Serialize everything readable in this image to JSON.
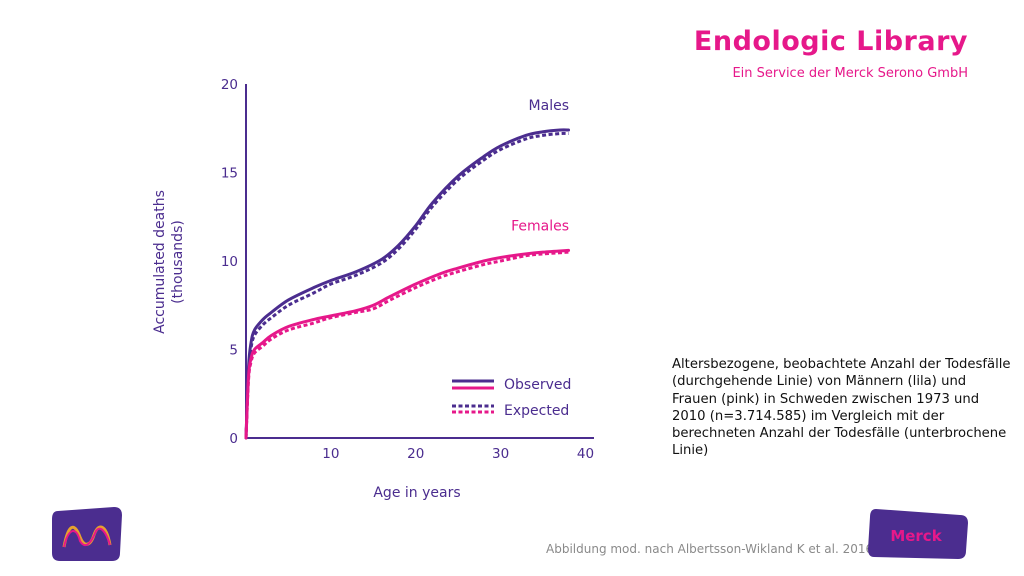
{
  "brand": {
    "title": "Endologic Library",
    "subtitle": "Ein Service der Merck Serono GmbH"
  },
  "caption": "Altersbezogene, beobachtete Anzahl der Todesfälle (durchgehende Linie) von Männern (lila) und Frauen (pink) in Schweden zwischen 1973 und 2010 (n=3.714.585) im Vergleich mit der berechneten Anzahl der Todesfälle (unterbrochene Linie)",
  "source": "Abbildung mod. nach Albertsson-Wikland K et al. 2016",
  "logos": {
    "left_icon": "merck-m-icon",
    "right_text": "Merck"
  },
  "colors": {
    "males": "#4b2d8f",
    "females": "#e6188a",
    "axis": "#4b2d8f",
    "brand": "#e6188a"
  },
  "chart_data": {
    "type": "line",
    "title": "",
    "xlabel": "Age in years",
    "ylabel": "Accumulated deaths (thousands)",
    "xlim": [
      0,
      41
    ],
    "ylim": [
      0,
      20
    ],
    "xticks": [
      10,
      20,
      30,
      40
    ],
    "yticks": [
      0,
      5,
      10,
      15,
      20
    ],
    "grid": false,
    "legend": {
      "placement": "bottom-right",
      "observed_label": "Observed",
      "expected_label": "Expected"
    },
    "series": [
      {
        "name": "Males",
        "line": "observed",
        "x": [
          0,
          0.3,
          0.6,
          1,
          2,
          3,
          5,
          8,
          10,
          13,
          16,
          18,
          20,
          22,
          25,
          28,
          30,
          33,
          35,
          37,
          38
        ],
        "y": [
          0,
          4.0,
          5.4,
          6.1,
          6.7,
          7.1,
          7.8,
          8.5,
          8.9,
          9.4,
          10.1,
          10.9,
          12.0,
          13.3,
          14.8,
          15.9,
          16.5,
          17.1,
          17.3,
          17.4,
          17.4
        ]
      },
      {
        "name": "Males",
        "line": "expected",
        "x": [
          0,
          0.3,
          0.6,
          1,
          2,
          3,
          5,
          8,
          10,
          13,
          16,
          18,
          20,
          22,
          25,
          28,
          30,
          33,
          35,
          37,
          38
        ],
        "y": [
          0,
          3.7,
          5.1,
          5.8,
          6.4,
          6.8,
          7.5,
          8.2,
          8.7,
          9.2,
          9.9,
          10.7,
          11.8,
          13.1,
          14.6,
          15.7,
          16.3,
          16.9,
          17.1,
          17.2,
          17.2
        ]
      },
      {
        "name": "Females",
        "line": "observed",
        "x": [
          0,
          0.3,
          0.6,
          1,
          2,
          3,
          5,
          8,
          10,
          13,
          15,
          17,
          20,
          23,
          25,
          28,
          30,
          33,
          35,
          38
        ],
        "y": [
          0,
          3.5,
          4.5,
          5.0,
          5.4,
          5.8,
          6.3,
          6.7,
          6.9,
          7.2,
          7.5,
          8.0,
          8.7,
          9.3,
          9.6,
          10.0,
          10.2,
          10.4,
          10.5,
          10.6
        ]
      },
      {
        "name": "Females",
        "line": "expected",
        "x": [
          0,
          0.3,
          0.6,
          1,
          2,
          3,
          5,
          8,
          10,
          13,
          15,
          17,
          20,
          23,
          25,
          28,
          30,
          33,
          35,
          38
        ],
        "y": [
          0,
          3.3,
          4.3,
          4.8,
          5.2,
          5.6,
          6.1,
          6.5,
          6.8,
          7.1,
          7.3,
          7.8,
          8.5,
          9.1,
          9.4,
          9.8,
          10.0,
          10.3,
          10.4,
          10.5
        ]
      }
    ]
  }
}
